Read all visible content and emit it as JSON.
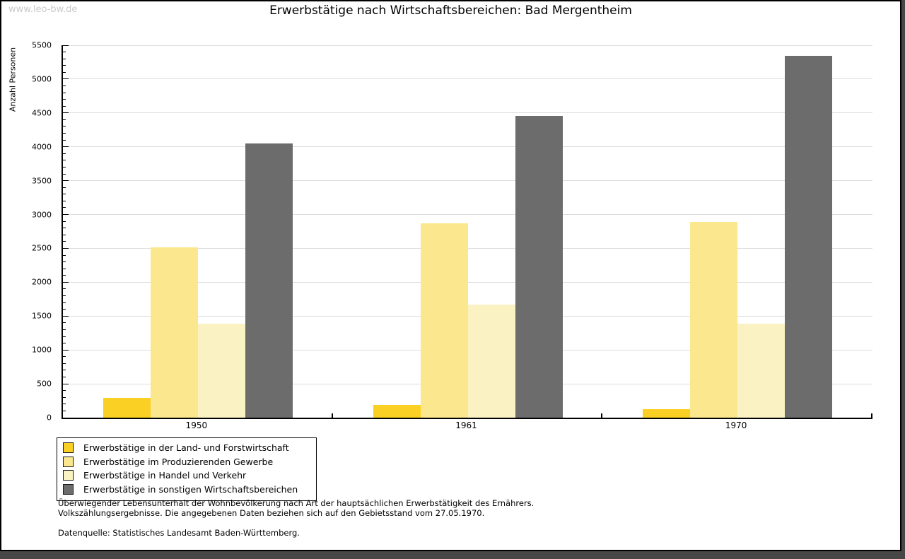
{
  "watermark": "www.leo-bw.de",
  "title": "Erwerbstätige nach Wirtschaftsbereichen: Bad Mergentheim",
  "chart_data": {
    "type": "bar",
    "title": "Erwerbstätige nach Wirtschaftsbereichen: Bad Mergentheim",
    "xlabel": "",
    "ylabel": "Anzahl Personen",
    "ylim": [
      0,
      5500
    ],
    "ytick_step": 500,
    "yminor_step": 100,
    "yticks": [
      0,
      500,
      1000,
      1500,
      2000,
      2500,
      3000,
      3500,
      4000,
      4500,
      5000,
      5500
    ],
    "grid": "horizontal-major-only",
    "gridline_color": "#dddddd",
    "categories": [
      "1950",
      "1961",
      "1970"
    ],
    "series": [
      {
        "name": "Erwerbstätige in der Land- und Forstwirtschaft",
        "color": "#fbd024",
        "values": [
          290,
          190,
          130
        ]
      },
      {
        "name": "Erwerbstätige im Produzierenden Gewerbe",
        "color": "#fbe78d",
        "values": [
          2520,
          2870,
          2890
        ]
      },
      {
        "name": "Erwerbstätige in Handel und Verkehr",
        "color": "#fbf2c4",
        "values": [
          1390,
          1670,
          1390
        ]
      },
      {
        "name": "Erwerbstätige in sonstigen Wirtschaftsbereichen",
        "color": "#6c6c6c",
        "values": [
          4050,
          4460,
          5340
        ]
      }
    ],
    "legend_position": "bottom-left-boxed"
  },
  "footnote": {
    "line1": "Überwiegender Lebensunterhalt der Wohnbevölkerung nach Art der hauptsächlichen Erwerbstätigkeit des Ernährers.",
    "line2": "Volkszählungsergebnisse. Die angegebenen Daten beziehen sich auf den Gebietsstand vom 27.05.1970.",
    "source": "Datenquelle: Statistisches Landesamt Baden-Württemberg."
  }
}
